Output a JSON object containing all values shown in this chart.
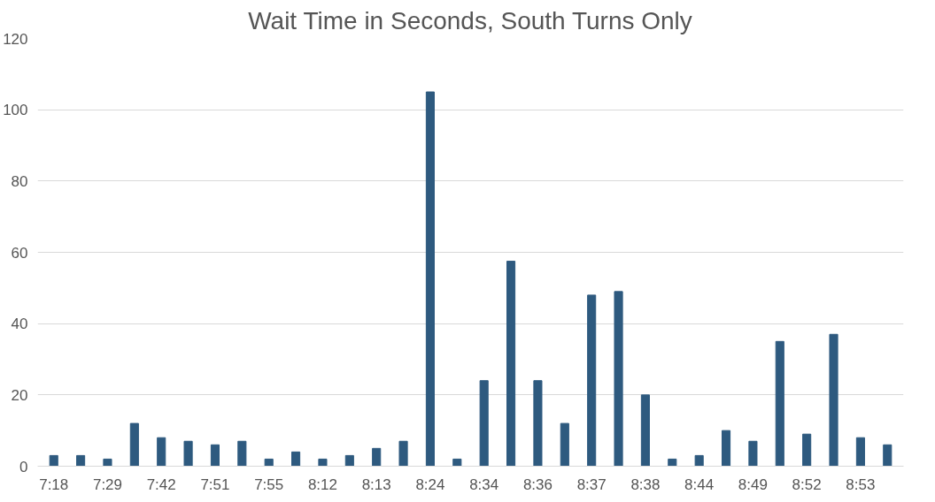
{
  "chart_data": {
    "type": "bar",
    "title": "Wait Time in Seconds, South Turns Only",
    "categories": [
      "7:18",
      null,
      "7:29",
      null,
      "7:42",
      null,
      "7:51",
      null,
      "7:55",
      null,
      "8:12",
      null,
      "8:13",
      null,
      "8:24",
      null,
      "8:34",
      null,
      "8:36",
      null,
      "8:37",
      null,
      "8:38",
      null,
      "8:44",
      null,
      "8:49",
      null,
      "8:52",
      null,
      "8:53",
      null
    ],
    "values": [
      3,
      3,
      2,
      12,
      8,
      7,
      6,
      7,
      2,
      4,
      2,
      3,
      5,
      7,
      105,
      2,
      24,
      57.5,
      24,
      12,
      48,
      49,
      20,
      2,
      3,
      10,
      7,
      35,
      9,
      37,
      8,
      6
    ],
    "color": "#2e5a7f",
    "ylim": [
      0,
      120
    ],
    "yticks": [
      0,
      20,
      40,
      60,
      80,
      100,
      120
    ],
    "grid": "y"
  }
}
